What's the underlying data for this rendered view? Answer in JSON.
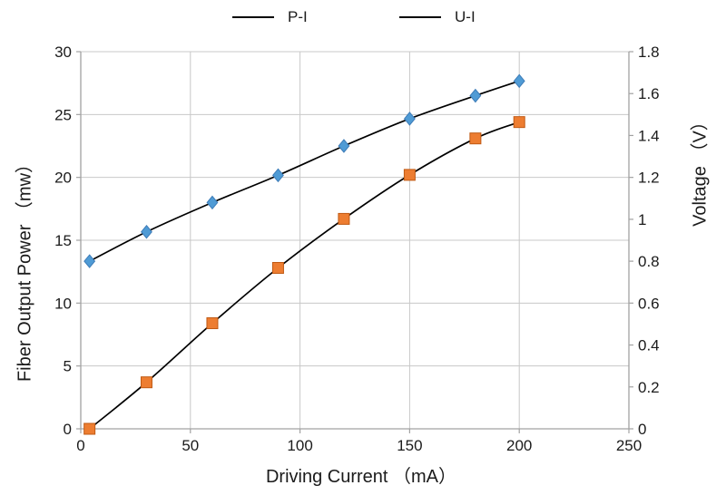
{
  "chart_data": {
    "type": "line",
    "title": "",
    "legend_position": "top-center",
    "grid": true,
    "smooth": true,
    "background": "#FFFFFF",
    "gridline_color": "#C8C8C8",
    "axis_line_color": "#A2A2A2",
    "text_color": "#1B1B1B",
    "x": [
      4,
      30,
      60,
      90,
      120,
      150,
      180,
      200
    ],
    "series": [
      {
        "name": "P-I",
        "y_axis": "left",
        "marker": "square",
        "marker_fill": "#ED7D31",
        "marker_stroke": "#C05A14",
        "line_color": "#000000",
        "values": [
          0,
          3.7,
          8.4,
          12.8,
          16.7,
          20.2,
          23.1,
          24.4
        ]
      },
      {
        "name": "U-I",
        "y_axis": "right",
        "marker": "diamond",
        "marker_fill": "#4F9BD5",
        "marker_stroke": "#3D7CB8",
        "line_color": "#000000",
        "values": [
          0.8,
          0.94,
          1.08,
          1.21,
          1.35,
          1.48,
          1.59,
          1.66
        ]
      }
    ],
    "x_axis": {
      "label": "Driving Current （mA）",
      "min": 0,
      "max": 250,
      "ticks": [
        "0",
        "50",
        "100",
        "150",
        "200",
        "250"
      ]
    },
    "y_left_axis": {
      "label": "Fiber Output Power （mw）",
      "min": 0,
      "max": 30,
      "ticks": [
        "0",
        "5",
        "10",
        "15",
        "20",
        "25",
        "30"
      ]
    },
    "y_right_axis": {
      "label": "Voltage （V）",
      "min": 0,
      "max": 1.8,
      "ticks": [
        "0",
        "0.2",
        "0.4",
        "0.6",
        "0.8",
        "1",
        "1.2",
        "1.4",
        "1.6",
        "1.8"
      ]
    }
  }
}
